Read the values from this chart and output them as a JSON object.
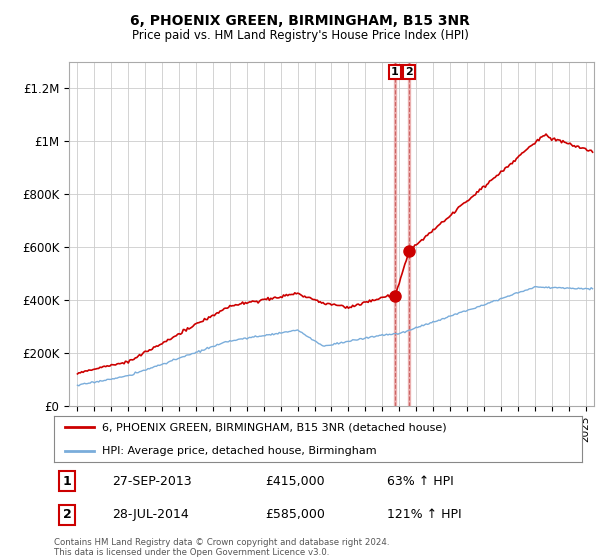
{
  "title": "6, PHOENIX GREEN, BIRMINGHAM, B15 3NR",
  "subtitle": "Price paid vs. HM Land Registry's House Price Index (HPI)",
  "legend_line1": "6, PHOENIX GREEN, BIRMINGHAM, B15 3NR (detached house)",
  "legend_line2": "HPI: Average price, detached house, Birmingham",
  "footer": "Contains HM Land Registry data © Crown copyright and database right 2024.\nThis data is licensed under the Open Government Licence v3.0.",
  "transaction1_date": "27-SEP-2013",
  "transaction1_price": "£415,000",
  "transaction1_hpi": "63% ↑ HPI",
  "transaction1_x": 2013.75,
  "transaction1_y": 415000,
  "transaction2_date": "28-JUL-2014",
  "transaction2_price": "£585,000",
  "transaction2_hpi": "121% ↑ HPI",
  "transaction2_x": 2014.58,
  "transaction2_y": 585000,
  "red_color": "#cc0000",
  "blue_color": "#7aaddb",
  "vline_color": "#e8a0a0",
  "vline_dash_color": "#cc6666",
  "ylim": [
    0,
    1300000
  ],
  "xlim_start": 1994.5,
  "xlim_end": 2025.5,
  "background_color": "#ffffff",
  "grid_color": "#cccccc"
}
